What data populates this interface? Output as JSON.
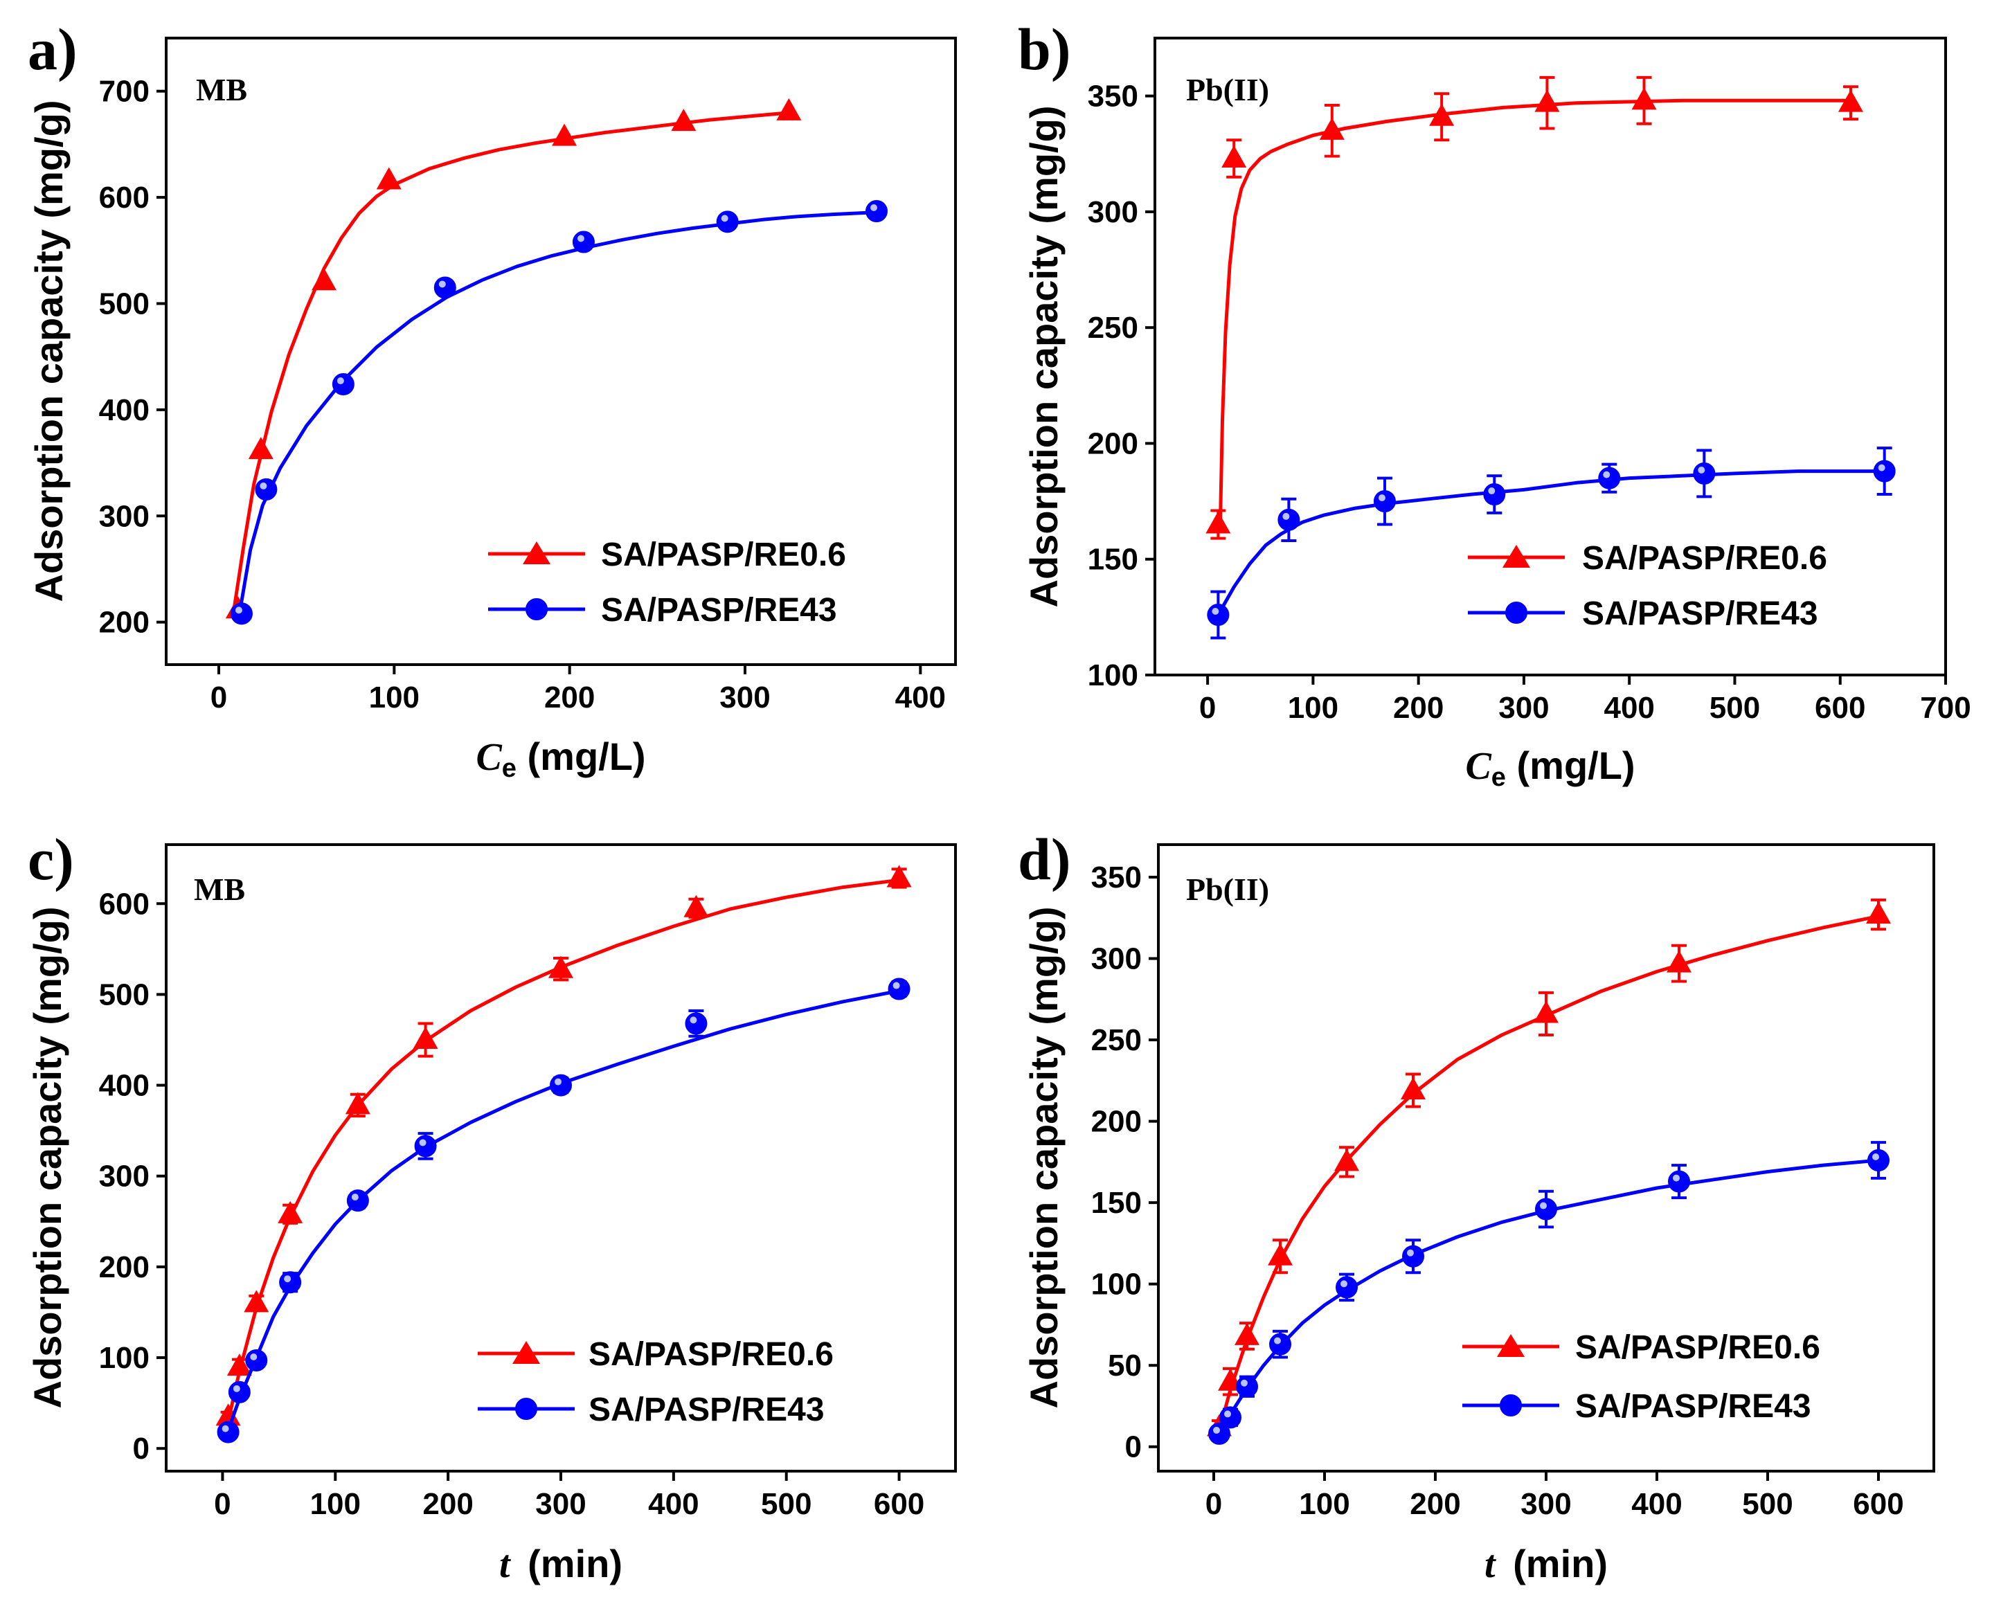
{
  "colors": {
    "red": "#ff0000",
    "blue": "#0000ff",
    "axis": "#000000"
  },
  "series_names": [
    "SA/PASP/RE0.6",
    "SA/PASP/RE43"
  ],
  "chart_data": [
    {
      "panel": "a)",
      "type": "scatter",
      "tag": "MB",
      "xlabel_symbol": "C",
      "xlabel_sub": "e",
      "xlabel_unit": " (mg/L)",
      "ylabel": "Adsorption capacity (mg/g)",
      "xlim": [
        -30,
        420
      ],
      "ylim": [
        160,
        750
      ],
      "xticks": [
        0,
        100,
        200,
        300,
        400
      ],
      "yticks": [
        200,
        300,
        400,
        500,
        600,
        700
      ],
      "legend_position": "bottom-right",
      "series": [
        {
          "name": "SA/PASP/RE0.6",
          "marker": "triangle",
          "x": [
            11,
            24,
            60,
            97,
            197,
            265,
            325
          ],
          "y": [
            212,
            362,
            521,
            616,
            657,
            671,
            681
          ],
          "err": [
            0,
            0,
            0,
            0,
            0,
            0,
            0
          ],
          "fit_x": [
            8,
            14,
            20,
            30,
            40,
            50,
            60,
            70,
            80,
            90,
            100,
            120,
            140,
            160,
            180,
            200,
            220,
            240,
            260,
            280,
            300,
            327
          ],
          "fit_y": [
            205,
            270,
            330,
            398,
            452,
            495,
            533,
            562,
            585,
            601,
            612,
            627,
            637,
            645,
            651,
            656,
            661,
            665,
            669,
            673,
            676,
            680
          ]
        },
        {
          "name": "SA/PASP/RE43",
          "marker": "circle",
          "x": [
            13,
            27,
            71,
            129,
            208,
            290,
            375
          ],
          "y": [
            208,
            325,
            424,
            515,
            558,
            577,
            587
          ],
          "err": [
            0,
            0,
            0,
            0,
            0,
            0,
            0
          ],
          "fit_x": [
            12,
            18,
            25,
            35,
            50,
            70,
            90,
            110,
            130,
            150,
            170,
            190,
            210,
            230,
            250,
            270,
            290,
            310,
            330,
            350,
            375
          ],
          "fit_y": [
            210,
            268,
            310,
            345,
            385,
            426,
            459,
            485,
            506,
            522,
            535,
            545,
            553,
            560,
            566,
            571,
            575,
            579,
            582,
            584,
            586
          ]
        }
      ]
    },
    {
      "panel": "b)",
      "type": "scatter",
      "tag": "Pb(II)",
      "xlabel_symbol": "C",
      "xlabel_sub": "e",
      "xlabel_unit": " (mg/L)",
      "ylabel": "Adsorption capacity (mg/g)",
      "xlim": [
        -50,
        700
      ],
      "ylim": [
        100,
        375
      ],
      "xticks": [
        0,
        100,
        200,
        300,
        400,
        500,
        600,
        700
      ],
      "yticks": [
        100,
        150,
        200,
        250,
        300,
        350
      ],
      "legend_position": "bottom-right",
      "series": [
        {
          "name": "SA/PASP/RE0.6",
          "marker": "triangle",
          "x": [
            10,
            25,
            118,
            222,
            322,
            414,
            610
          ],
          "y": [
            165,
            323,
            335,
            341,
            347,
            348,
            347
          ],
          "err": [
            6,
            8,
            11,
            10,
            11,
            10,
            7
          ],
          "fit_x": [
            12,
            14,
            17,
            21,
            26,
            32,
            40,
            50,
            60,
            75,
            100,
            130,
            170,
            220,
            280,
            350,
            450,
            550,
            610
          ],
          "fit_y": [
            165,
            210,
            248,
            277,
            298,
            310,
            318,
            323,
            326,
            329,
            333,
            336,
            339,
            342,
            345,
            347,
            348,
            348,
            348
          ]
        },
        {
          "name": "SA/PASP/RE43",
          "marker": "circle",
          "x": [
            10,
            77,
            168,
            272,
            381,
            471,
            642
          ],
          "y": [
            126,
            167,
            175,
            178,
            185,
            187,
            188
          ],
          "err": [
            10,
            9,
            10,
            8,
            6,
            10,
            10
          ],
          "fit_x": [
            10,
            25,
            40,
            55,
            70,
            90,
            110,
            140,
            170,
            210,
            250,
            300,
            350,
            400,
            450,
            500,
            560,
            642
          ],
          "fit_y": [
            126,
            138,
            148,
            156,
            161,
            166,
            169,
            172,
            174,
            176,
            178,
            180,
            183,
            185,
            186,
            187,
            188,
            188
          ]
        }
      ]
    },
    {
      "panel": "c)",
      "type": "scatter",
      "tag": "MB",
      "xlabel_symbol": "t",
      "xlabel_sub": "",
      "xlabel_unit": " (min)",
      "ylabel": "Adsorption capacity (mg/g)",
      "xlim": [
        -50,
        650
      ],
      "ylim": [
        -25,
        665
      ],
      "xticks": [
        0,
        100,
        200,
        300,
        400,
        500,
        600
      ],
      "yticks": [
        0,
        100,
        200,
        300,
        400,
        500,
        600
      ],
      "legend_position": "bottom-right",
      "series": [
        {
          "name": "SA/PASP/RE0.6",
          "marker": "triangle",
          "x": [
            5,
            15,
            30,
            60,
            120,
            180,
            300,
            420,
            600
          ],
          "y": [
            35,
            90,
            160,
            258,
            378,
            450,
            528,
            595,
            628
          ],
          "err": [
            5,
            8,
            8,
            10,
            12,
            18,
            12,
            10,
            10
          ],
          "fit_x": [
            5,
            15,
            30,
            45,
            60,
            80,
            100,
            120,
            150,
            180,
            220,
            260,
            300,
            350,
            400,
            450,
            500,
            550,
            600
          ],
          "fit_y": [
            30,
            85,
            155,
            210,
            255,
            305,
            345,
            378,
            418,
            449,
            482,
            508,
            530,
            554,
            575,
            594,
            607,
            618,
            626
          ]
        },
        {
          "name": "SA/PASP/RE43",
          "marker": "circle",
          "x": [
            5,
            15,
            30,
            60,
            120,
            180,
            300,
            420,
            600
          ],
          "y": [
            18,
            62,
            97,
            183,
            273,
            333,
            400,
            468,
            506
          ],
          "err": [
            5,
            5,
            6,
            10,
            8,
            14,
            8,
            14,
            8
          ],
          "fit_x": [
            5,
            15,
            30,
            45,
            60,
            80,
            100,
            120,
            150,
            180,
            220,
            260,
            300,
            350,
            400,
            450,
            500,
            550,
            600
          ],
          "fit_y": [
            20,
            55,
            100,
            145,
            178,
            215,
            247,
            273,
            306,
            332,
            359,
            382,
            402,
            423,
            443,
            462,
            478,
            492,
            504
          ]
        }
      ]
    },
    {
      "panel": "d)",
      "type": "scatter",
      "tag": "Pb(II)",
      "xlabel_symbol": "t",
      "xlabel_sub": "",
      "xlabel_unit": " (min)",
      "ylabel": "Adsorption capacity (mg/g)",
      "xlim": [
        -50,
        650
      ],
      "ylim": [
        -15,
        370
      ],
      "xticks": [
        0,
        100,
        200,
        300,
        400,
        500,
        600
      ],
      "yticks": [
        0,
        50,
        100,
        150,
        200,
        250,
        300,
        350
      ],
      "legend_position": "bottom-right",
      "series": [
        {
          "name": "SA/PASP/RE0.6",
          "marker": "triangle",
          "x": [
            5,
            15,
            30,
            60,
            120,
            180,
            300,
            420,
            600
          ],
          "y": [
            12,
            40,
            68,
            117,
            175,
            219,
            266,
            297,
            327
          ],
          "err": [
            4,
            8,
            8,
            10,
            9,
            10,
            13,
            11,
            9
          ],
          "fit_x": [
            5,
            15,
            30,
            45,
            60,
            80,
            100,
            120,
            150,
            180,
            220,
            260,
            300,
            350,
            400,
            450,
            500,
            550,
            600
          ],
          "fit_y": [
            10,
            35,
            66,
            92,
            115,
            140,
            160,
            176,
            198,
            217,
            238,
            253,
            265,
            280,
            292,
            302,
            311,
            319,
            326
          ]
        },
        {
          "name": "SA/PASP/RE43",
          "marker": "circle",
          "x": [
            5,
            15,
            30,
            60,
            120,
            180,
            300,
            420,
            600
          ],
          "y": [
            8,
            18,
            37,
            63,
            98,
            117,
            146,
            163,
            176
          ],
          "err": [
            3,
            5,
            6,
            8,
            8,
            10,
            11,
            10,
            11
          ],
          "fit_x": [
            5,
            15,
            30,
            45,
            60,
            80,
            100,
            120,
            150,
            180,
            220,
            260,
            300,
            350,
            400,
            450,
            500,
            550,
            600
          ],
          "fit_y": [
            8,
            20,
            36,
            50,
            62,
            76,
            87,
            96,
            108,
            118,
            129,
            138,
            145,
            152,
            159,
            164,
            169,
            173,
            176
          ]
        }
      ]
    }
  ]
}
